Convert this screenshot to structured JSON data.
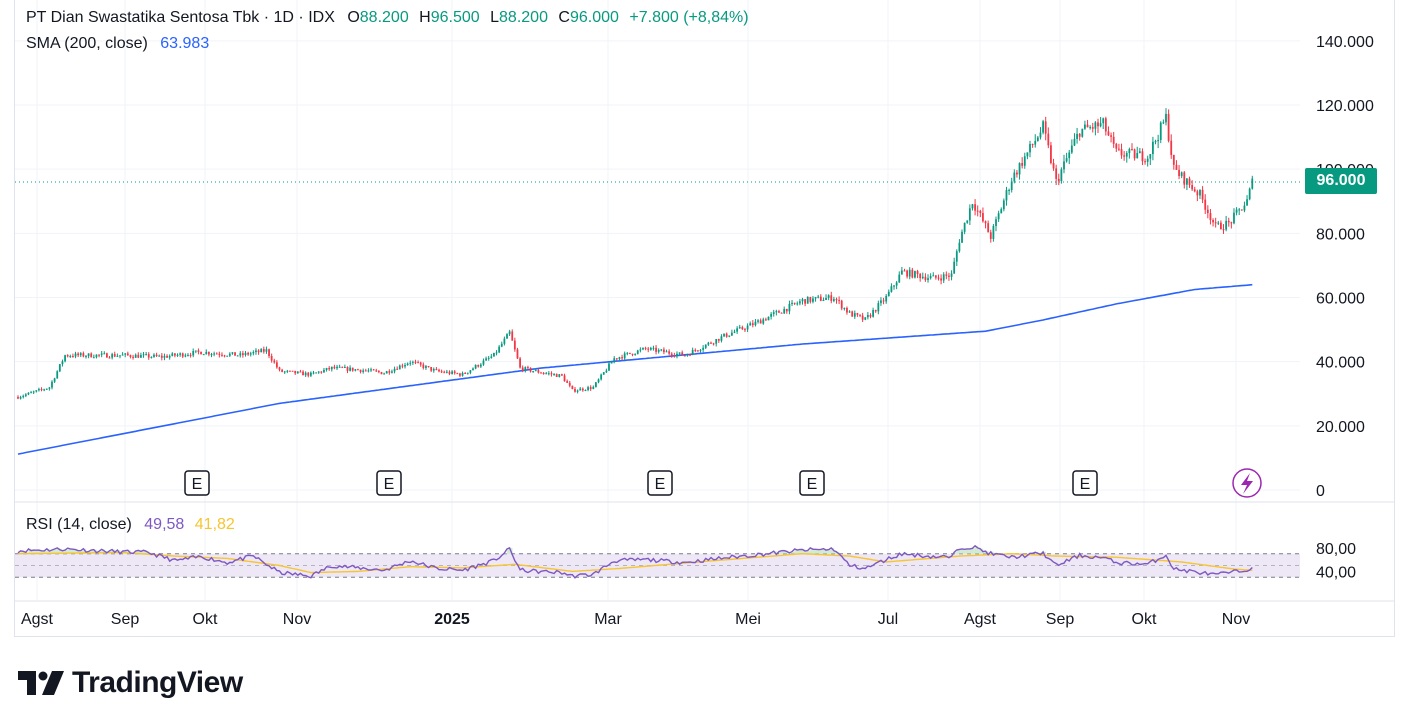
{
  "header": {
    "symbol": "PT Dian Swastatika Sentosa Tbk · 1D · IDX",
    "o_label": "O",
    "o_value": "88.200",
    "h_label": "H",
    "h_value": "96.500",
    "l_label": "L",
    "l_value": "88.200",
    "c_label": "C",
    "c_value": "96.000",
    "change": "+7.800 (+8,84%)"
  },
  "sma_legend": {
    "label": "SMA (200, close)",
    "value": "63.983"
  },
  "rsi_legend": {
    "label": "RSI (14, close)",
    "value": "49,58",
    "ma_value": "41,82"
  },
  "price_tag": "96.000",
  "logo_text": "TradingView",
  "colors": {
    "up": "#089981",
    "down": "#f23645",
    "sma": "#2962ff",
    "rsi": "#7e57c2",
    "rsi_ma": "#f7c530",
    "rsi_band": "#ede7f6",
    "flash_icon": "#9c27b0"
  },
  "chart_data": {
    "type": "candlestick",
    "y_axis": {
      "min": 0,
      "max": 140000,
      "ticks": [
        "140.000",
        "120.000",
        "100.000",
        "80.000",
        "60.000",
        "40.000",
        "20.000",
        "0"
      ]
    },
    "x_axis": {
      "ticks": [
        "Agst",
        "Sep",
        "Okt",
        "Nov",
        "2025",
        "Mar",
        "Mei",
        "Jul",
        "Agst",
        "Sep",
        "Okt",
        "Nov"
      ]
    },
    "last_price": 96000,
    "close_path": [
      [
        0,
        29000
      ],
      [
        12,
        32000
      ],
      [
        18,
        42000
      ],
      [
        40,
        42000
      ],
      [
        55,
        41500
      ],
      [
        70,
        43000
      ],
      [
        85,
        42000
      ],
      [
        95,
        43500
      ],
      [
        100,
        37000
      ],
      [
        112,
        36000
      ],
      [
        120,
        38000
      ],
      [
        130,
        37500
      ],
      [
        140,
        36500
      ],
      [
        150,
        40000
      ],
      [
        160,
        37000
      ],
      [
        170,
        36000
      ],
      [
        182,
        42000
      ],
      [
        188,
        49000
      ],
      [
        192,
        38000
      ],
      [
        198,
        37000
      ],
      [
        208,
        35500
      ],
      [
        212,
        31000
      ],
      [
        220,
        32000
      ],
      [
        228,
        41000
      ],
      [
        240,
        44000
      ],
      [
        255,
        42000
      ],
      [
        270,
        48000
      ],
      [
        282,
        52000
      ],
      [
        300,
        59000
      ],
      [
        312,
        60000
      ],
      [
        318,
        55000
      ],
      [
        324,
        53000
      ],
      [
        332,
        60000
      ],
      [
        338,
        68000
      ],
      [
        350,
        66000
      ],
      [
        357,
        67000
      ],
      [
        360,
        78000
      ],
      [
        365,
        90000
      ],
      [
        372,
        79000
      ],
      [
        380,
        97000
      ],
      [
        392,
        113000
      ],
      [
        397,
        96000
      ],
      [
        406,
        112000
      ],
      [
        415,
        114000
      ],
      [
        420,
        105000
      ],
      [
        432,
        104000
      ],
      [
        439,
        116000
      ],
      [
        442,
        100000
      ],
      [
        452,
        92000
      ],
      [
        458,
        82000
      ],
      [
        463,
        83000
      ],
      [
        470,
        90000
      ],
      [
        472,
        96000
      ]
    ],
    "sma200": [
      [
        0,
        11200
      ],
      [
        100,
        27000
      ],
      [
        200,
        38000
      ],
      [
        300,
        45500
      ],
      [
        370,
        49500
      ],
      [
        392,
        53000
      ],
      [
        420,
        58000
      ],
      [
        450,
        62500
      ],
      [
        472,
        63983
      ]
    ],
    "earnings_markers": [
      "E",
      "E",
      "E",
      "E",
      "E"
    ],
    "rsi": {
      "y_ticks": [
        "80,00",
        "40,00"
      ],
      "upper": 70,
      "lower": 30,
      "values": [
        [
          0,
          75
        ],
        [
          18,
          78
        ],
        [
          40,
          73
        ],
        [
          50,
          72
        ],
        [
          60,
          58
        ],
        [
          70,
          65
        ],
        [
          80,
          55
        ],
        [
          90,
          66
        ],
        [
          100,
          38
        ],
        [
          112,
          32
        ],
        [
          120,
          50
        ],
        [
          130,
          46
        ],
        [
          140,
          42
        ],
        [
          150,
          58
        ],
        [
          160,
          45
        ],
        [
          170,
          42
        ],
        [
          182,
          58
        ],
        [
          188,
          78
        ],
        [
          192,
          42
        ],
        [
          198,
          40
        ],
        [
          208,
          38
        ],
        [
          212,
          32
        ],
        [
          220,
          35
        ],
        [
          228,
          58
        ],
        [
          240,
          60
        ],
        [
          255,
          55
        ],
        [
          270,
          63
        ],
        [
          282,
          68
        ],
        [
          300,
          76
        ],
        [
          312,
          78
        ],
        [
          318,
          50
        ],
        [
          324,
          45
        ],
        [
          332,
          60
        ],
        [
          338,
          70
        ],
        [
          350,
          65
        ],
        [
          357,
          64
        ],
        [
          360,
          80
        ],
        [
          365,
          82
        ],
        [
          372,
          70
        ],
        [
          380,
          64
        ],
        [
          392,
          71
        ],
        [
          397,
          50
        ],
        [
          406,
          67
        ],
        [
          415,
          63
        ],
        [
          420,
          55
        ],
        [
          432,
          52
        ],
        [
          439,
          68
        ],
        [
          442,
          44
        ],
        [
          452,
          38
        ],
        [
          458,
          34
        ],
        [
          463,
          38
        ],
        [
          470,
          42
        ],
        [
          472,
          49.58
        ]
      ],
      "ma": [
        [
          0,
          70
        ],
        [
          40,
          72
        ],
        [
          60,
          66
        ],
        [
          80,
          62
        ],
        [
          100,
          50
        ],
        [
          112,
          38
        ],
        [
          130,
          40
        ],
        [
          150,
          48
        ],
        [
          170,
          46
        ],
        [
          190,
          52
        ],
        [
          212,
          40
        ],
        [
          230,
          45
        ],
        [
          260,
          56
        ],
        [
          300,
          70
        ],
        [
          318,
          66
        ],
        [
          332,
          56
        ],
        [
          360,
          66
        ],
        [
          380,
          70
        ],
        [
          397,
          66
        ],
        [
          420,
          64
        ],
        [
          445,
          56
        ],
        [
          465,
          44
        ],
        [
          472,
          41.82
        ]
      ]
    }
  }
}
